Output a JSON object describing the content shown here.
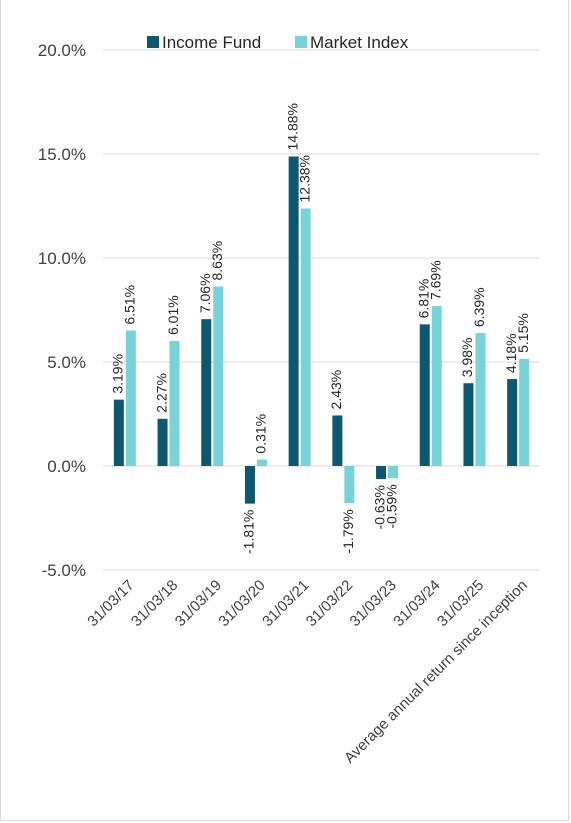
{
  "header": {
    "title_fragment": ""
  },
  "colors": {
    "income_fund": "#0b5870",
    "market_index": "#76d3da",
    "grid": "#d9d9d9",
    "axis_text": "#404040"
  },
  "chart_data": {
    "type": "bar",
    "title": "",
    "xlabel": "",
    "ylabel": "",
    "ylim": [
      -5,
      20
    ],
    "yticks": [
      20,
      15,
      10,
      5,
      0,
      -5
    ],
    "ytick_labels": [
      "20.0%",
      "15.0%",
      "10.0%",
      "5.0%",
      "0.0%",
      "-5.0%"
    ],
    "grid": true,
    "legend_position": "top",
    "categories": [
      "31/03/17",
      "31/03/18",
      "31/03/19",
      "31/03/20",
      "31/03/21",
      "31/03/22",
      "31/03/23",
      "31/03/24",
      "31/03/25",
      "Average annual return since inception"
    ],
    "series": [
      {
        "name": "Income Fund",
        "values": [
          3.19,
          2.27,
          7.06,
          -1.81,
          14.88,
          2.43,
          -0.63,
          6.81,
          3.98,
          4.18
        ],
        "labels": [
          "3.19%",
          "2.27%",
          "7.06%",
          "-1.81%",
          "14.88%",
          "2.43%",
          "-0.63%",
          "6.81%",
          "3.98%",
          "4.18%"
        ]
      },
      {
        "name": "Market Index",
        "values": [
          6.51,
          6.01,
          8.63,
          0.31,
          12.38,
          -1.79,
          -0.59,
          7.69,
          6.39,
          5.15
        ],
        "labels": [
          "6.51%",
          "6.01%",
          "8.63%",
          "0.31%",
          "12.38%",
          "-1.79%",
          "-0.59%",
          "7.69%",
          "6.39%",
          "5.15%"
        ]
      }
    ]
  }
}
